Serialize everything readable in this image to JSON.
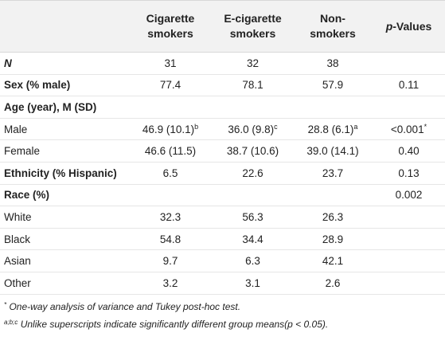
{
  "table": {
    "headers": {
      "cigarette": [
        "Cigarette",
        "smokers"
      ],
      "ecigarette": [
        "E-cigarette",
        "smokers"
      ],
      "nonsmokers": [
        "Non-",
        "smokers"
      ],
      "pvalue_italic": "p",
      "pvalue_rest": "-Values"
    },
    "rows": [
      {
        "label": "N",
        "style": "bold-italic",
        "cig": "31",
        "ecig": "32",
        "non": "38",
        "p": ""
      },
      {
        "label": "Sex (% male)",
        "style": "bold",
        "cig": "77.4",
        "ecig": "78.1",
        "non": "57.9",
        "p": "0.11"
      },
      {
        "label": "Age (year), M (SD)",
        "style": "bold",
        "cig": "",
        "ecig": "",
        "non": "",
        "p": ""
      },
      {
        "label": "Male",
        "style": "normal",
        "cig": "46.9 (10.1)",
        "cig_sup": "b",
        "ecig": "36.0 (9.8)",
        "ecig_sup": "c",
        "non": "28.8 (6.1)",
        "non_sup": "a",
        "p": "<0.001",
        "p_sup": "*"
      },
      {
        "label": "Female",
        "style": "normal",
        "cig": "46.6 (11.5)",
        "ecig": "38.7 (10.6)",
        "non": "39.0 (14.1)",
        "p": "0.40"
      },
      {
        "label": "Ethnicity (% Hispanic)",
        "style": "bold",
        "cig": "6.5",
        "ecig": "22.6",
        "non": "23.7",
        "p": "0.13"
      },
      {
        "label": "Race (%)",
        "style": "bold",
        "cig": "",
        "ecig": "",
        "non": "",
        "p": "0.002"
      },
      {
        "label": "White",
        "style": "normal",
        "cig": "32.3",
        "ecig": "56.3",
        "non": "26.3",
        "p": ""
      },
      {
        "label": "Black",
        "style": "normal",
        "cig": "54.8",
        "ecig": "34.4",
        "non": "28.9",
        "p": ""
      },
      {
        "label": "Asian",
        "style": "normal",
        "cig": "9.7",
        "ecig": "6.3",
        "non": "42.1",
        "p": ""
      },
      {
        "label": "Other",
        "style": "normal",
        "cig": "3.2",
        "ecig": "3.1",
        "non": "2.6",
        "p": ""
      }
    ]
  },
  "notes": {
    "note1_mark": "*",
    "note1_text": "One-way analysis of variance and Tukey post-hoc test.",
    "note2_mark": "a;b;c",
    "note2_text": "Unlike superscripts indicate significantly different group means(p < 0.05)."
  }
}
